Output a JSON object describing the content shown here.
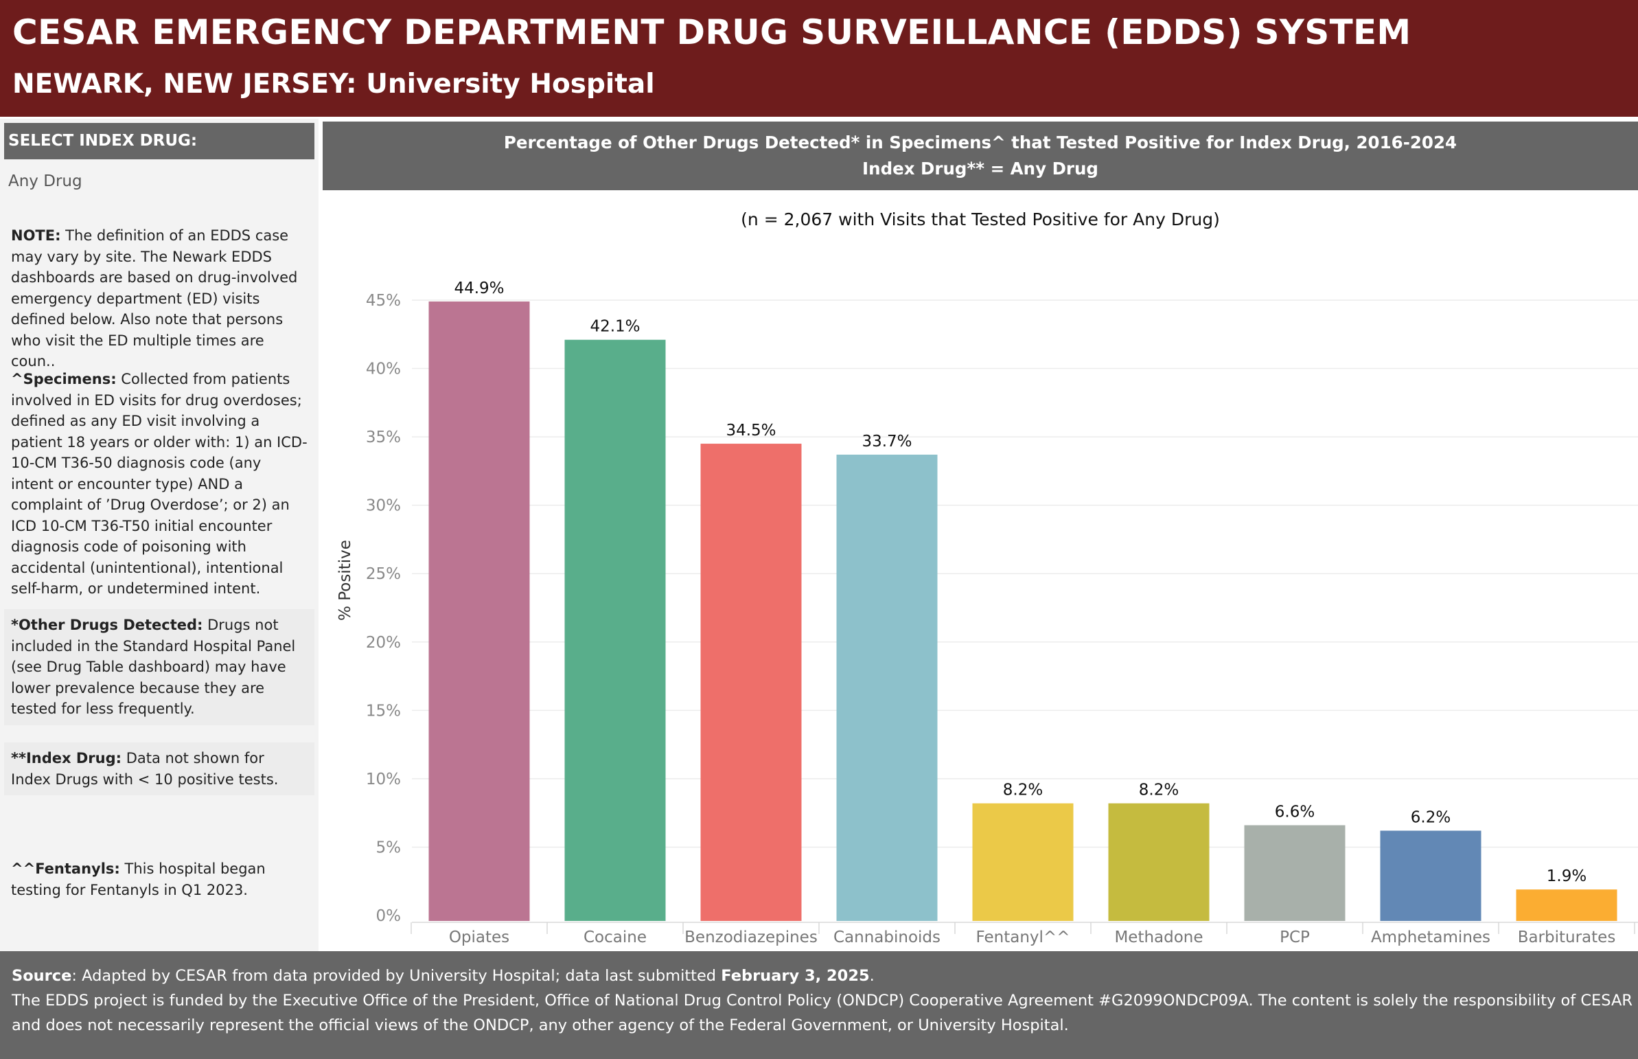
{
  "header": {
    "title": "CESAR EMERGENCY DEPARTMENT DRUG SURVEILLANCE (EDDS) SYSTEM",
    "subtitle": "NEWARK, NEW JERSEY:  University Hospital"
  },
  "sidebar": {
    "select_label": "SELECT INDEX DRUG:",
    "selected_value": "Any Drug",
    "note": {
      "label": "NOTE:",
      "text": " The definition of an EDDS case may vary by site. The Newark EDDS dashboards are based on drug-involved emergency department (ED) visits defined below. Also note that persons who visit the ED multiple times are coun.."
    },
    "specimens": {
      "label": "^Specimens:",
      "text": " Collected from patients involved in ED visits for drug overdoses; defined as any ED visit involving a patient 18 years or older with: 1) an ICD-10-CM T36-50 diagnosis code (any intent or encounter type) AND a complaint of ’Drug Overdose’; or  2) an ICD 10-CM T36-T50 initial encounter diagnosis code of poisoning with accidental (unintentional), intentional self-harm, or undetermined intent."
    },
    "other_drugs": {
      "label": "*Other Drugs Detected:",
      "text": " Drugs not included in the Standard Hospital Panel (see Drug Table dashboard) may have lower prevalence because they are tested for less frequently."
    },
    "index_drug": {
      "label": "**Index Drug:",
      "text": " Data not shown for Index Drugs with < 10 positive tests."
    },
    "fentanyls": {
      "label": "^^Fentanyls:",
      "text": " This hospital began testing for Fentanyls in Q1 2023."
    }
  },
  "chart_title": {
    "line1": "Percentage of Other Drugs Detected* in Specimens^ that Tested Positive for Index Drug, 2016-2024",
    "line2": "Index Drug** = Any Drug"
  },
  "n_note": "(n = 2,067 with Visits that Tested Positive for Any Drug)",
  "chart_data": {
    "type": "bar",
    "categories": [
      "Opiates",
      "Cocaine",
      "Benzodiazepines",
      "Cannabinoids",
      "Fentanyl^^",
      "Methadone",
      "PCP",
      "Amphetamines",
      "Barbiturates"
    ],
    "values": [
      44.9,
      42.1,
      34.5,
      33.7,
      8.2,
      8.2,
      6.6,
      6.2,
      1.9
    ],
    "data_labels": [
      "44.9%",
      "42.1%",
      "34.5%",
      "33.7%",
      "8.2%",
      "8.2%",
      "6.6%",
      "6.2%",
      "1.9%"
    ],
    "colors": [
      "#bb7592",
      "#59ae8b",
      "#ee6f6a",
      "#8dc1cb",
      "#ebc948",
      "#c5bb3f",
      "#a8b0aa",
      "#6288b5",
      "#fbad32"
    ],
    "ylabel": "% Positive",
    "ylim": [
      0,
      45
    ],
    "yticks": [
      0,
      5,
      10,
      15,
      20,
      25,
      30,
      35,
      40,
      45
    ],
    "ytick_labels": [
      "0%",
      "5%",
      "10%",
      "15%",
      "20%",
      "25%",
      "30%",
      "35%",
      "40%",
      "45%"
    ],
    "grid": true
  },
  "footer": {
    "source_label": "Source",
    "source_text": ": Adapted by CESAR from data provided by University Hospital; data last submitted ",
    "source_date": "February 3, 2025",
    "source_end": ".",
    "funding": "The EDDS project is funded by the Executive Office of the President, Office of National Drug Control Policy (ONDCP) Cooperative Agreement #G2099ONDCP09A. The content is solely the responsibility of CESAR and does not necessarily represent the official views of the ONDCP, any other agency of the Federal Government, or University Hospital."
  }
}
